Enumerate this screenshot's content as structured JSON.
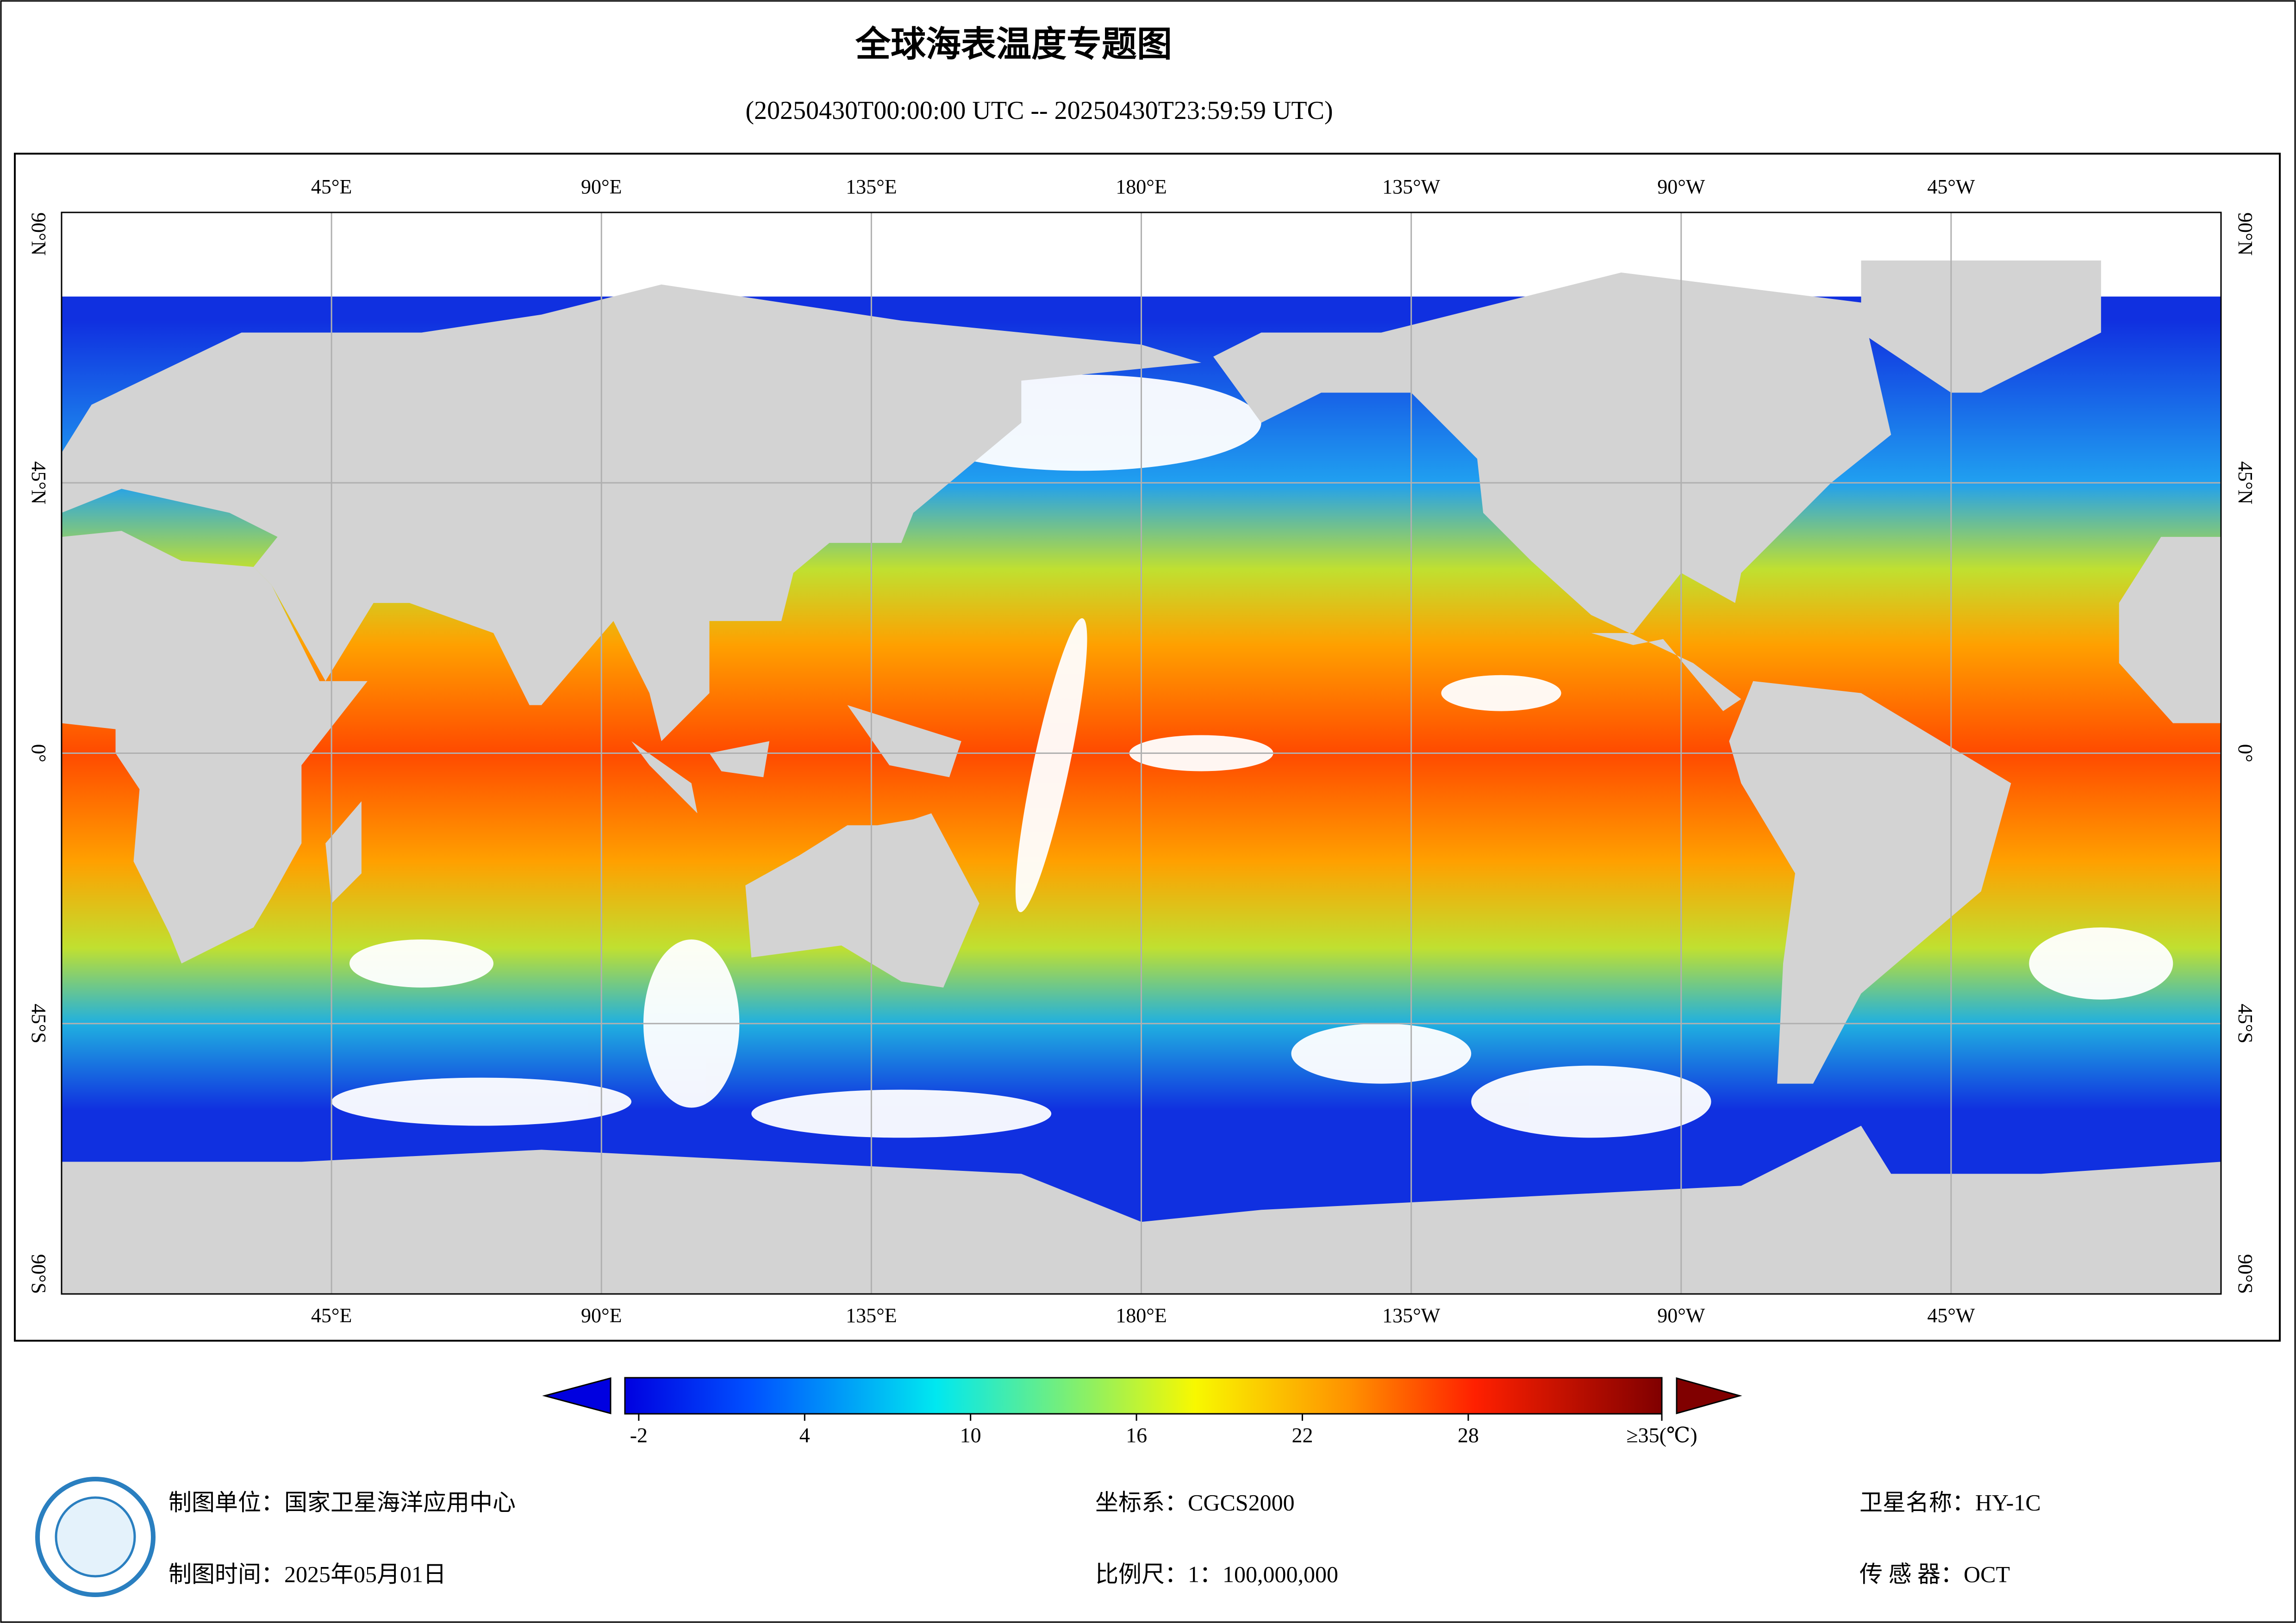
{
  "header": {
    "title": "全球海表温度专题图",
    "subtitle": "(20250430T00:00:00 UTC -- 20250430T23:59:59 UTC)"
  },
  "map": {
    "lonlim": [
      0,
      360
    ],
    "latlim": [
      -90,
      90
    ],
    "lon_ticks": [
      {
        "value": 45,
        "label": "45°E"
      },
      {
        "value": 90,
        "label": "90°E"
      },
      {
        "value": 135,
        "label": "135°E"
      },
      {
        "value": 180,
        "label": "180°E"
      },
      {
        "value": 225,
        "label": "135°W"
      },
      {
        "value": 270,
        "label": "90°W"
      },
      {
        "value": 315,
        "label": "45°W"
      }
    ],
    "lat_ticks": [
      {
        "value": 90,
        "label": "90°N"
      },
      {
        "value": 45,
        "label": "45°N"
      },
      {
        "value": 0,
        "label": "0°"
      },
      {
        "value": -45,
        "label": "45°S"
      },
      {
        "value": -90,
        "label": "90°S"
      }
    ],
    "grid": true
  },
  "colorbar": {
    "range": [
      -2.5,
      35
    ],
    "ticks": [
      -2,
      4,
      10,
      16,
      22,
      28,
      {
        "value": 35,
        "label": "≥35(℃)"
      }
    ]
  },
  "footer": {
    "producer": "制图单位：国家卫星海洋应用中心",
    "date": "制图时间：2025年05月01日",
    "crs": "坐标系：CGCS2000",
    "scale": "比例尺：1：100,000,000",
    "satellite": "卫星名称：HY-1C",
    "sensor": "传 感 器：OCT"
  }
}
